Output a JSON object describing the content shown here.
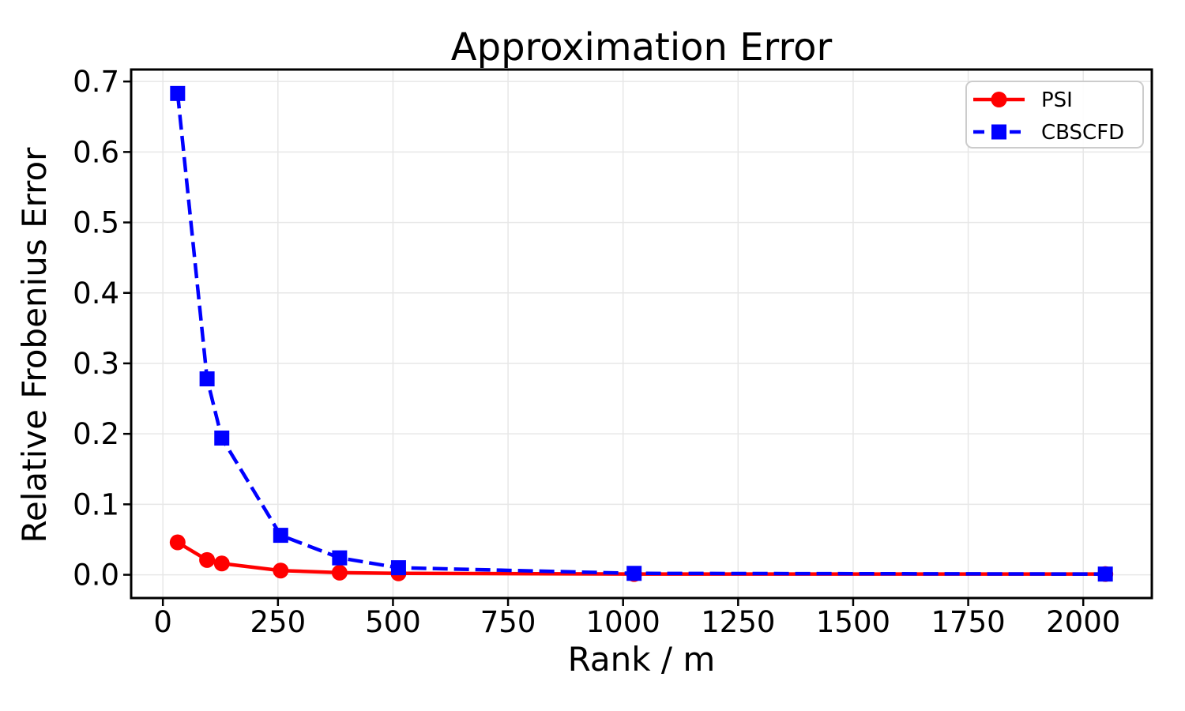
{
  "chart_data": {
    "type": "line",
    "title": "Approximation Error",
    "xlabel": "Rank / m",
    "ylabel": "Relative Frobenius Error",
    "x": [
      32,
      96,
      128,
      256,
      384,
      512,
      1024,
      2048
    ],
    "series": [
      {
        "name": "PSI",
        "color": "#ff0000",
        "linestyle": "solid",
        "marker": "circle",
        "values": [
          0.046,
          0.021,
          0.016,
          0.006,
          0.003,
          0.002,
          0.001,
          0.001
        ]
      },
      {
        "name": "CBSCFD",
        "color": "#0000ff",
        "linestyle": "dashed",
        "marker": "square",
        "values": [
          0.683,
          0.278,
          0.194,
          0.056,
          0.024,
          0.01,
          0.002,
          0.001
        ]
      }
    ],
    "xticks": [
      0,
      250,
      500,
      750,
      1000,
      1250,
      1500,
      1750,
      2000
    ],
    "xtick_labels": [
      "0",
      "250",
      "500",
      "750",
      "1000",
      "1250",
      "1500",
      "1750",
      "2000"
    ],
    "yticks": [
      0.0,
      0.1,
      0.2,
      0.3,
      0.4,
      0.5,
      0.6,
      0.7
    ],
    "ytick_labels": [
      "0.0",
      "0.1",
      "0.2",
      "0.3",
      "0.4",
      "0.5",
      "0.6",
      "0.7"
    ],
    "xlim": [
      -69,
      2149
    ],
    "ylim": [
      -0.033,
      0.717
    ],
    "grid": true,
    "legend_position": "upper right"
  },
  "style": {
    "background_color": "#ffffff",
    "grid_color": "#e7e7e7",
    "spine_color": "#000000",
    "tick_color": "#000000",
    "text_color": "#000000",
    "legend_border_color": "#cccccc",
    "psi_color": "#ff0000",
    "cbscfd_color": "#0000ff"
  }
}
